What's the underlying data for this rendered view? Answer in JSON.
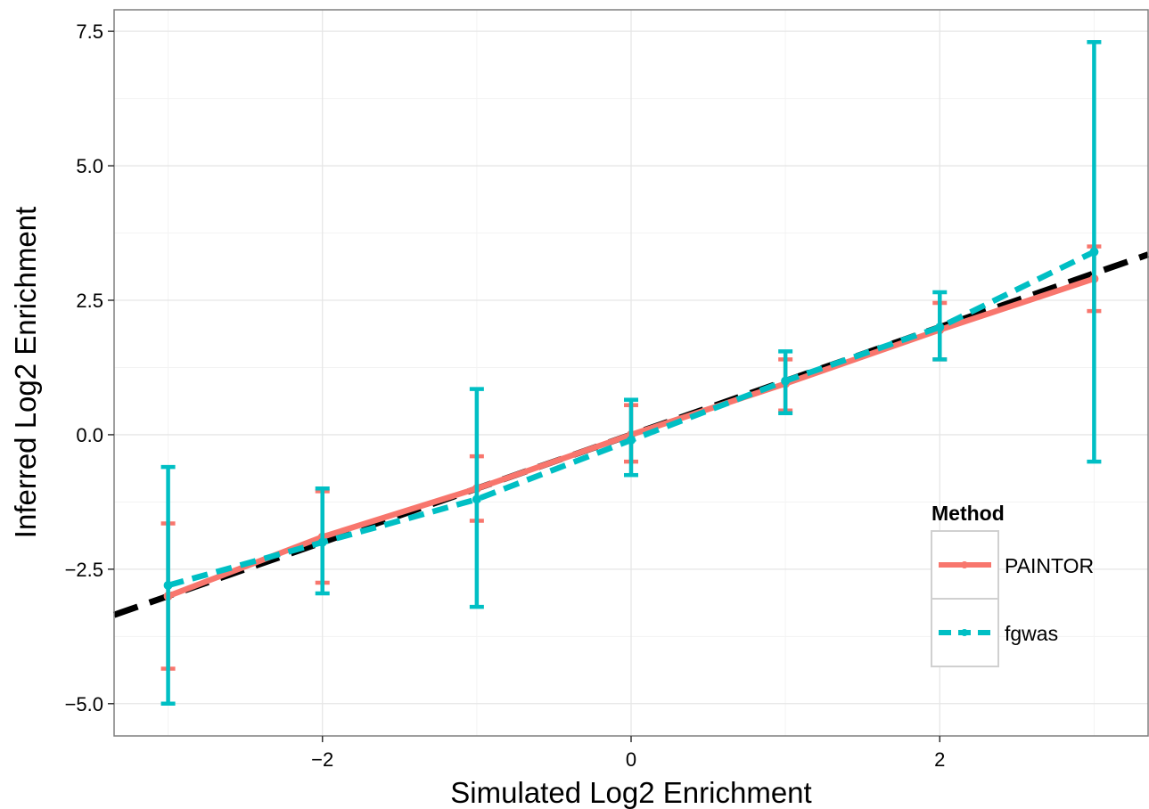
{
  "chart_data": {
    "type": "line",
    "title": "",
    "xlabel": "Simulated Log2 Enrichment",
    "ylabel": "Inferred Log2 Enrichment",
    "xlim": [
      -3.35,
      3.35
    ],
    "ylim": [
      -5.6,
      7.9
    ],
    "x_ticks": [
      -2,
      0,
      2
    ],
    "x_tick_labels": [
      "−2",
      "0",
      "2"
    ],
    "y_ticks": [
      -5.0,
      -2.5,
      0.0,
      2.5,
      5.0,
      7.5
    ],
    "y_tick_labels": [
      "−5.0",
      "−2.5",
      "0.0",
      "2.5",
      "5.0",
      "7.5"
    ],
    "grid": true,
    "legend": {
      "title": "Method",
      "position": "bottom-right"
    },
    "reference_line": {
      "slope": 1,
      "intercept": 0,
      "style": "dashed",
      "color": "#000000"
    },
    "series": [
      {
        "name": "PAINTOR",
        "color": "#F8766D",
        "style": "solid",
        "x": [
          -3,
          -2,
          -1,
          0,
          1,
          2,
          3
        ],
        "y": [
          -3.0,
          -1.9,
          -1.0,
          0.0,
          0.95,
          1.95,
          2.9
        ],
        "ymin": [
          -4.35,
          -2.75,
          -1.6,
          -0.5,
          0.45,
          1.4,
          2.3
        ],
        "ymax": [
          -1.65,
          -1.05,
          -0.4,
          0.55,
          1.4,
          2.45,
          3.5
        ]
      },
      {
        "name": "fgwas",
        "color": "#00BFC4",
        "style": "dashed",
        "x": [
          -3,
          -2,
          -1,
          0,
          1,
          2,
          3
        ],
        "y": [
          -2.8,
          -2.0,
          -1.2,
          -0.1,
          1.0,
          2.0,
          3.4
        ],
        "ymin": [
          -5.0,
          -2.95,
          -3.2,
          -0.75,
          0.4,
          1.4,
          -0.5
        ],
        "ymax": [
          -0.6,
          -1.0,
          0.85,
          0.65,
          1.55,
          2.65,
          7.3
        ]
      }
    ]
  }
}
